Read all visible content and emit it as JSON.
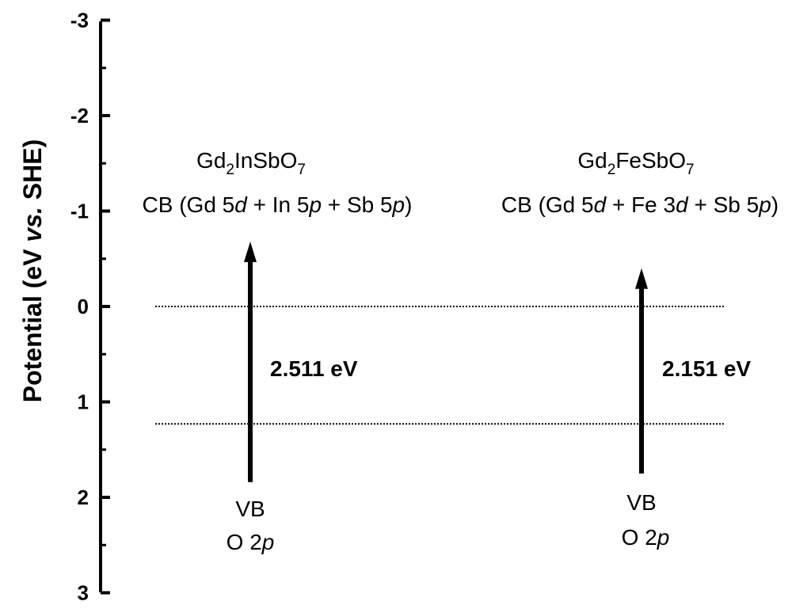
{
  "colors": {
    "ink": "#000000",
    "background": "#ffffff"
  },
  "axis": {
    "title_main": "Potential (eV ",
    "title_italic": "vs.",
    "title_end": " SHE)",
    "ylim": [
      -3,
      3
    ],
    "ticks": [
      {
        "value": -3,
        "label": "-3"
      },
      {
        "value": -2,
        "label": "-2"
      },
      {
        "value": -1,
        "label": "-1"
      },
      {
        "value": 0,
        "label": "0"
      },
      {
        "value": 1,
        "label": "1"
      },
      {
        "value": 2,
        "label": "2"
      },
      {
        "value": 3,
        "label": "3"
      }
    ]
  },
  "reference_lines": [
    {
      "value": 0,
      "style": "dotted"
    },
    {
      "value": 1.23,
      "style": "dotted"
    }
  ],
  "materials": [
    {
      "formula": {
        "a": "Gd",
        "a_sub": "2",
        "b": "InSbO",
        "b_sub": "7"
      },
      "cb": {
        "p1": "CB (Gd 5",
        "i1": "d",
        "p2": " + In 5",
        "i2": "p",
        "p3": " + Sb 5",
        "i3": "p",
        "p4": ")"
      },
      "bandgap": "2.511 eV",
      "vb_line1": "VB",
      "vb": {
        "p1": "O 2",
        "i1": "p"
      },
      "vb_potential": 1.84,
      "cb_potential": -0.68
    },
    {
      "formula": {
        "a": "Gd",
        "a_sub": "2",
        "b": "FeSbO",
        "b_sub": "7"
      },
      "cb": {
        "p1": "CB (Gd 5",
        "i1": "d",
        "p2": " + Fe 3",
        "i2": "d",
        "p3": " + Sb 5",
        "i3": "p",
        "p4": ")"
      },
      "bandgap": "2.151 eV",
      "vb_line1": "VB",
      "vb": {
        "p1": "O 2",
        "i1": "p"
      },
      "vb_potential": 1.75,
      "cb_potential": -0.4
    }
  ]
}
